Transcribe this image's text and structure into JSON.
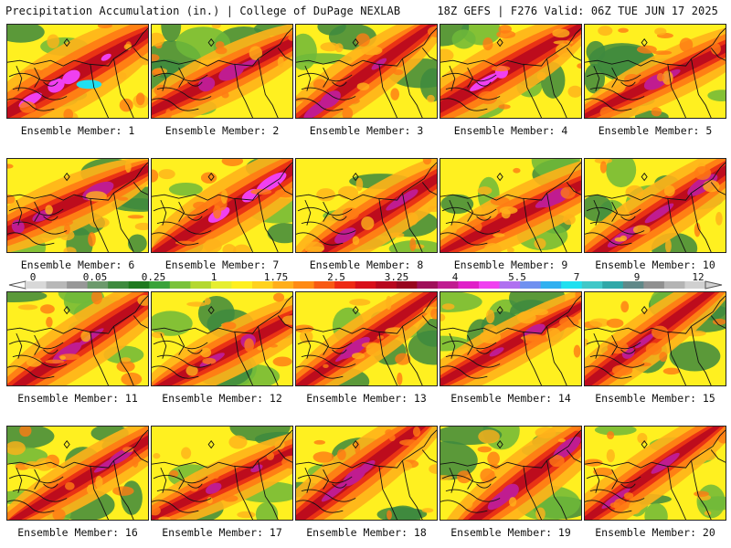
{
  "header": {
    "left_title": "Precipitation Accumulation (in.) | College of DuPage NEXLAB",
    "right_title": "18Z GEFS | F276 Valid: 06Z TUE JUN 17 2025"
  },
  "panel_label_prefix": "Ensemble Member: ",
  "members": [
    {
      "number": "1",
      "wet": 0.8
    },
    {
      "number": "2",
      "wet": 0.55
    },
    {
      "number": "3",
      "wet": 0.55
    },
    {
      "number": "4",
      "wet": 0.65
    },
    {
      "number": "5",
      "wet": 0.45
    },
    {
      "number": "6",
      "wet": 0.55
    },
    {
      "number": "7",
      "wet": 0.65
    },
    {
      "number": "8",
      "wet": 0.6
    },
    {
      "number": "9",
      "wet": 0.55
    },
    {
      "number": "10",
      "wet": 0.6
    },
    {
      "number": "11",
      "wet": 0.6
    },
    {
      "number": "12",
      "wet": 0.5
    },
    {
      "number": "13",
      "wet": 0.45
    },
    {
      "number": "14",
      "wet": 0.4
    },
    {
      "number": "15",
      "wet": 0.45
    },
    {
      "number": "16",
      "wet": 0.45
    },
    {
      "number": "17",
      "wet": 0.4
    },
    {
      "number": "18",
      "wet": 0.6
    },
    {
      "number": "19",
      "wet": 0.6
    },
    {
      "number": "20",
      "wet": 0.45
    }
  ],
  "legend": {
    "tick_labels": [
      "0",
      "0.05",
      "0.25",
      "1",
      "1.75",
      "2.5",
      "3.25",
      "4",
      "5.5",
      "7",
      "9",
      "12"
    ],
    "colors": [
      "#d8d8d8",
      "#b8b8b8",
      "#989898",
      "#6c9a6c",
      "#3e8a3e",
      "#1f7a1f",
      "#3aa23a",
      "#7ac23a",
      "#b4d830",
      "#e6ee30",
      "#fff020",
      "#ffd21e",
      "#ffae1a",
      "#ff8a14",
      "#f85a14",
      "#ee2a14",
      "#d8101a",
      "#b8081e",
      "#98061e",
      "#a0105a",
      "#c01c90",
      "#e020c8",
      "#f040f0",
      "#b070f0",
      "#7090f0",
      "#30b0f0",
      "#20e0f0",
      "#40c8c8",
      "#30a8a8",
      "#608888",
      "#909090",
      "#b4b4b4",
      "#d0d0d0"
    ]
  },
  "field_colors": [
    "#3e8a3e",
    "#6fb83a",
    "#c8e034",
    "#fff020",
    "#ffb21a",
    "#ff7a14",
    "#e82a14",
    "#b8081e",
    "#c01c90",
    "#f040f0",
    "#20e0f0"
  ]
}
